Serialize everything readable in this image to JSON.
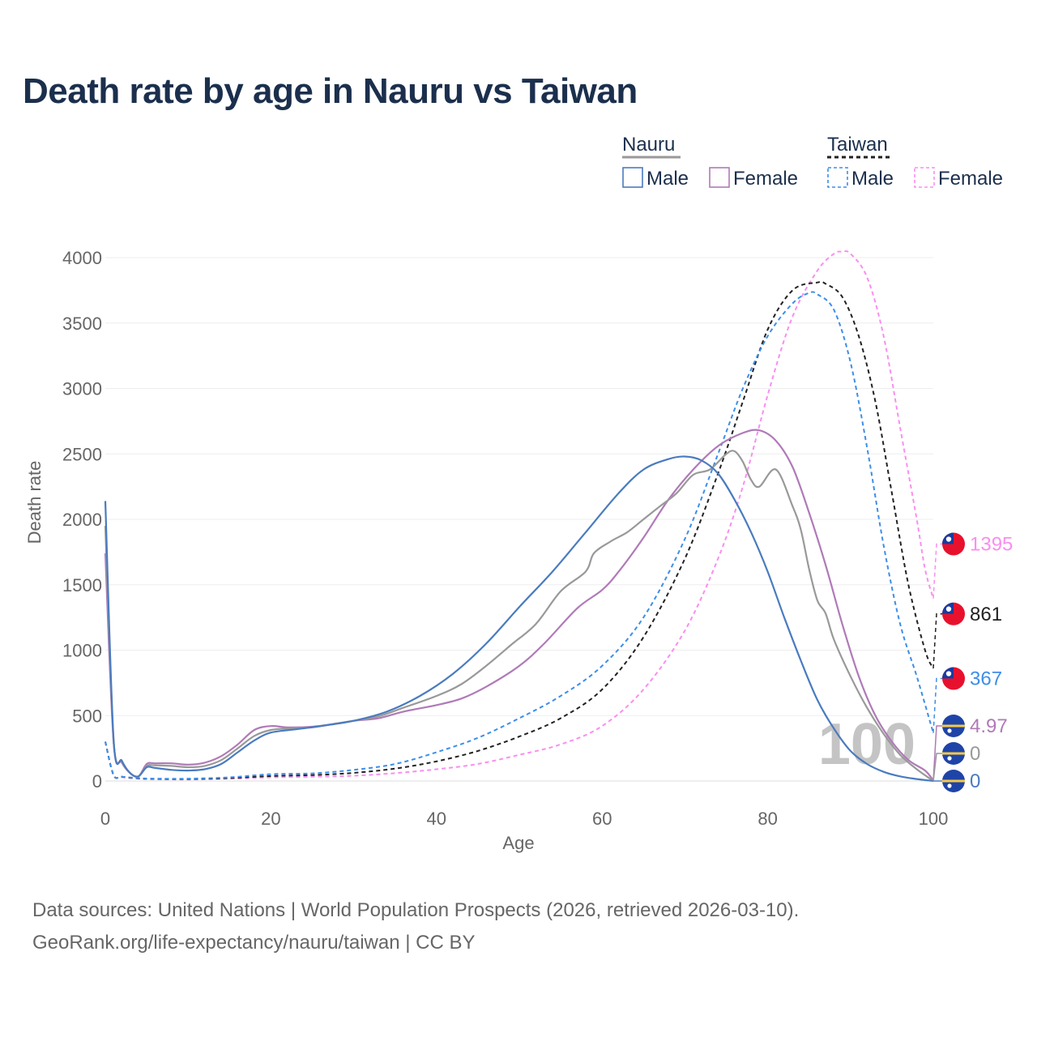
{
  "title": "Death rate by age in Nauru vs Taiwan",
  "source": {
    "line1": "Data sources: United Nations | World Population Prospects (2026, retrieved 2026-03-10).",
    "line2": "GeoRank.org/life-expectancy/nauru/taiwan | CC BY"
  },
  "legend": {
    "groups": [
      {
        "name": "Nauru",
        "color": "#999999",
        "dash": false
      },
      {
        "name": "Taiwan",
        "color": "#222222",
        "dash": true
      }
    ],
    "items": [
      {
        "label": "Male",
        "color": "#4a7bbf",
        "dash": false
      },
      {
        "label": "Female",
        "color": "#b07ab8",
        "dash": false
      },
      {
        "label": "Male",
        "color": "#3d8ee8",
        "dash": true
      },
      {
        "label": "Female",
        "color": "#f98ef0",
        "dash": true
      }
    ]
  },
  "chart_data": {
    "type": "line",
    "title": "Death rate by age in Nauru vs Taiwan",
    "xlabel": "Age",
    "ylabel": "Death rate",
    "xlim": [
      0,
      100
    ],
    "ylim": [
      0,
      4000
    ],
    "xticks": [
      0,
      20,
      40,
      60,
      80,
      100
    ],
    "yticks": [
      0,
      500,
      1000,
      1500,
      2000,
      2500,
      3000,
      3500,
      4000
    ],
    "grid": true,
    "watermark": "100",
    "series": [
      {
        "name": "Taiwan Female",
        "country": "Taiwan",
        "sex": "Female",
        "color": "#f98ef0",
        "dash": true,
        "end_label": "1395",
        "points": [
          [
            0,
            300
          ],
          [
            1,
            45
          ],
          [
            2,
            30
          ],
          [
            4,
            18
          ],
          [
            6,
            14
          ],
          [
            10,
            12
          ],
          [
            15,
            18
          ],
          [
            20,
            28
          ],
          [
            25,
            32
          ],
          [
            30,
            40
          ],
          [
            35,
            60
          ],
          [
            40,
            90
          ],
          [
            45,
            130
          ],
          [
            50,
            200
          ],
          [
            55,
            280
          ],
          [
            60,
            420
          ],
          [
            65,
            700
          ],
          [
            70,
            1150
          ],
          [
            74,
            1700
          ],
          [
            77,
            2250
          ],
          [
            80,
            2950
          ],
          [
            83,
            3550
          ],
          [
            86,
            3900
          ],
          [
            88,
            4030
          ],
          [
            89,
            4045
          ],
          [
            90,
            4030
          ],
          [
            92,
            3850
          ],
          [
            94,
            3400
          ],
          [
            96,
            2700
          ],
          [
            98,
            2000
          ],
          [
            99,
            1620
          ],
          [
            100,
            1395
          ]
        ]
      },
      {
        "name": "Taiwan Total",
        "country": "Taiwan",
        "sex": "Total",
        "color": "#222222",
        "dash": true,
        "end_label": "861",
        "points": [
          [
            0,
            300
          ],
          [
            1,
            45
          ],
          [
            2,
            32
          ],
          [
            4,
            20
          ],
          [
            6,
            16
          ],
          [
            10,
            15
          ],
          [
            15,
            22
          ],
          [
            20,
            38
          ],
          [
            25,
            45
          ],
          [
            30,
            62
          ],
          [
            35,
            95
          ],
          [
            40,
            150
          ],
          [
            45,
            230
          ],
          [
            50,
            340
          ],
          [
            55,
            480
          ],
          [
            60,
            700
          ],
          [
            65,
            1100
          ],
          [
            70,
            1700
          ],
          [
            74,
            2350
          ],
          [
            77,
            2900
          ],
          [
            80,
            3450
          ],
          [
            83,
            3750
          ],
          [
            86,
            3810
          ],
          [
            87,
            3800
          ],
          [
            89,
            3700
          ],
          [
            91,
            3400
          ],
          [
            93,
            2900
          ],
          [
            95,
            2200
          ],
          [
            97,
            1500
          ],
          [
            99,
            1000
          ],
          [
            100,
            861
          ]
        ]
      },
      {
        "name": "Taiwan Male",
        "country": "Taiwan",
        "sex": "Male",
        "color": "#3d8ee8",
        "dash": true,
        "end_label": "367",
        "points": [
          [
            0,
            300
          ],
          [
            1,
            45
          ],
          [
            2,
            33
          ],
          [
            4,
            22
          ],
          [
            6,
            18
          ],
          [
            10,
            18
          ],
          [
            15,
            28
          ],
          [
            20,
            52
          ],
          [
            25,
            58
          ],
          [
            30,
            85
          ],
          [
            35,
            130
          ],
          [
            40,
            220
          ],
          [
            45,
            330
          ],
          [
            50,
            480
          ],
          [
            55,
            650
          ],
          [
            60,
            880
          ],
          [
            65,
            1250
          ],
          [
            70,
            1850
          ],
          [
            74,
            2500
          ],
          [
            77,
            3000
          ],
          [
            80,
            3400
          ],
          [
            83,
            3650
          ],
          [
            85,
            3730
          ],
          [
            86,
            3720
          ],
          [
            88,
            3600
          ],
          [
            90,
            3200
          ],
          [
            92,
            2550
          ],
          [
            94,
            1800
          ],
          [
            96,
            1200
          ],
          [
            98,
            800
          ],
          [
            100,
            367
          ]
        ]
      },
      {
        "name": "Nauru Female",
        "country": "Nauru",
        "sex": "Female",
        "color": "#b07ab8",
        "dash": false,
        "end_label": "4.97",
        "points": [
          [
            0,
            1740
          ],
          [
            1,
            300
          ],
          [
            2,
            140
          ],
          [
            3,
            60
          ],
          [
            4,
            35
          ],
          [
            5,
            130
          ],
          [
            6,
            135
          ],
          [
            8,
            135
          ],
          [
            10,
            125
          ],
          [
            12,
            140
          ],
          [
            14,
            190
          ],
          [
            16,
            280
          ],
          [
            18,
            390
          ],
          [
            20,
            420
          ],
          [
            22,
            410
          ],
          [
            25,
            415
          ],
          [
            28,
            440
          ],
          [
            30,
            460
          ],
          [
            33,
            480
          ],
          [
            36,
            530
          ],
          [
            40,
            580
          ],
          [
            43,
            630
          ],
          [
            46,
            720
          ],
          [
            50,
            880
          ],
          [
            53,
            1050
          ],
          [
            57,
            1320
          ],
          [
            60,
            1460
          ],
          [
            62,
            1600
          ],
          [
            65,
            1860
          ],
          [
            68,
            2150
          ],
          [
            71,
            2380
          ],
          [
            74,
            2560
          ],
          [
            77,
            2660
          ],
          [
            79,
            2680
          ],
          [
            81,
            2600
          ],
          [
            83,
            2400
          ],
          [
            85,
            2050
          ],
          [
            87,
            1650
          ],
          [
            89,
            1200
          ],
          [
            91,
            800
          ],
          [
            93,
            500
          ],
          [
            95,
            300
          ],
          [
            97,
            160
          ],
          [
            99,
            80
          ],
          [
            100,
            5
          ]
        ]
      },
      {
        "name": "Nauru Total",
        "country": "Nauru",
        "sex": "Total",
        "color": "#999999",
        "dash": false,
        "end_label": "0",
        "points": [
          [
            0,
            1950
          ],
          [
            1,
            310
          ],
          [
            2,
            150
          ],
          [
            3,
            60
          ],
          [
            4,
            35
          ],
          [
            5,
            115
          ],
          [
            6,
            120
          ],
          [
            8,
            115
          ],
          [
            10,
            105
          ],
          [
            12,
            115
          ],
          [
            14,
            160
          ],
          [
            16,
            250
          ],
          [
            18,
            345
          ],
          [
            20,
            390
          ],
          [
            22,
            400
          ],
          [
            25,
            410
          ],
          [
            28,
            440
          ],
          [
            30,
            460
          ],
          [
            33,
            495
          ],
          [
            36,
            560
          ],
          [
            40,
            650
          ],
          [
            43,
            740
          ],
          [
            46,
            880
          ],
          [
            49,
            1040
          ],
          [
            52,
            1200
          ],
          [
            55,
            1450
          ],
          [
            58,
            1600
          ],
          [
            59,
            1740
          ],
          [
            61,
            1830
          ],
          [
            63,
            1900
          ],
          [
            65,
            2000
          ],
          [
            67,
            2100
          ],
          [
            69,
            2200
          ],
          [
            71,
            2340
          ],
          [
            73,
            2380
          ],
          [
            75,
            2500
          ],
          [
            76,
            2520
          ],
          [
            77,
            2440
          ],
          [
            78,
            2300
          ],
          [
            79,
            2250
          ],
          [
            81,
            2380
          ],
          [
            83,
            2100
          ],
          [
            84,
            1920
          ],
          [
            85,
            1620
          ],
          [
            86,
            1380
          ],
          [
            87,
            1280
          ],
          [
            88,
            1080
          ],
          [
            90,
            800
          ],
          [
            92,
            560
          ],
          [
            94,
            360
          ],
          [
            96,
            200
          ],
          [
            98,
            90
          ],
          [
            100,
            0
          ]
        ]
      },
      {
        "name": "Nauru Male",
        "country": "Nauru",
        "sex": "Male",
        "color": "#4a7bbf",
        "dash": false,
        "end_label": "0",
        "points": [
          [
            0,
            2140
          ],
          [
            1,
            320
          ],
          [
            2,
            155
          ],
          [
            3,
            60
          ],
          [
            4,
            35
          ],
          [
            5,
            105
          ],
          [
            6,
            100
          ],
          [
            8,
            85
          ],
          [
            10,
            80
          ],
          [
            12,
            90
          ],
          [
            14,
            130
          ],
          [
            16,
            220
          ],
          [
            18,
            310
          ],
          [
            20,
            370
          ],
          [
            23,
            395
          ],
          [
            26,
            420
          ],
          [
            30,
            460
          ],
          [
            34,
            530
          ],
          [
            38,
            650
          ],
          [
            42,
            820
          ],
          [
            46,
            1050
          ],
          [
            50,
            1330
          ],
          [
            54,
            1600
          ],
          [
            58,
            1900
          ],
          [
            62,
            2200
          ],
          [
            65,
            2380
          ],
          [
            68,
            2460
          ],
          [
            70,
            2480
          ],
          [
            72,
            2450
          ],
          [
            74,
            2350
          ],
          [
            76,
            2150
          ],
          [
            78,
            1900
          ],
          [
            80,
            1600
          ],
          [
            82,
            1250
          ],
          [
            84,
            920
          ],
          [
            86,
            620
          ],
          [
            88,
            400
          ],
          [
            90,
            230
          ],
          [
            92,
            130
          ],
          [
            94,
            70
          ],
          [
            96,
            35
          ],
          [
            98,
            15
          ],
          [
            100,
            0
          ]
        ]
      }
    ]
  }
}
